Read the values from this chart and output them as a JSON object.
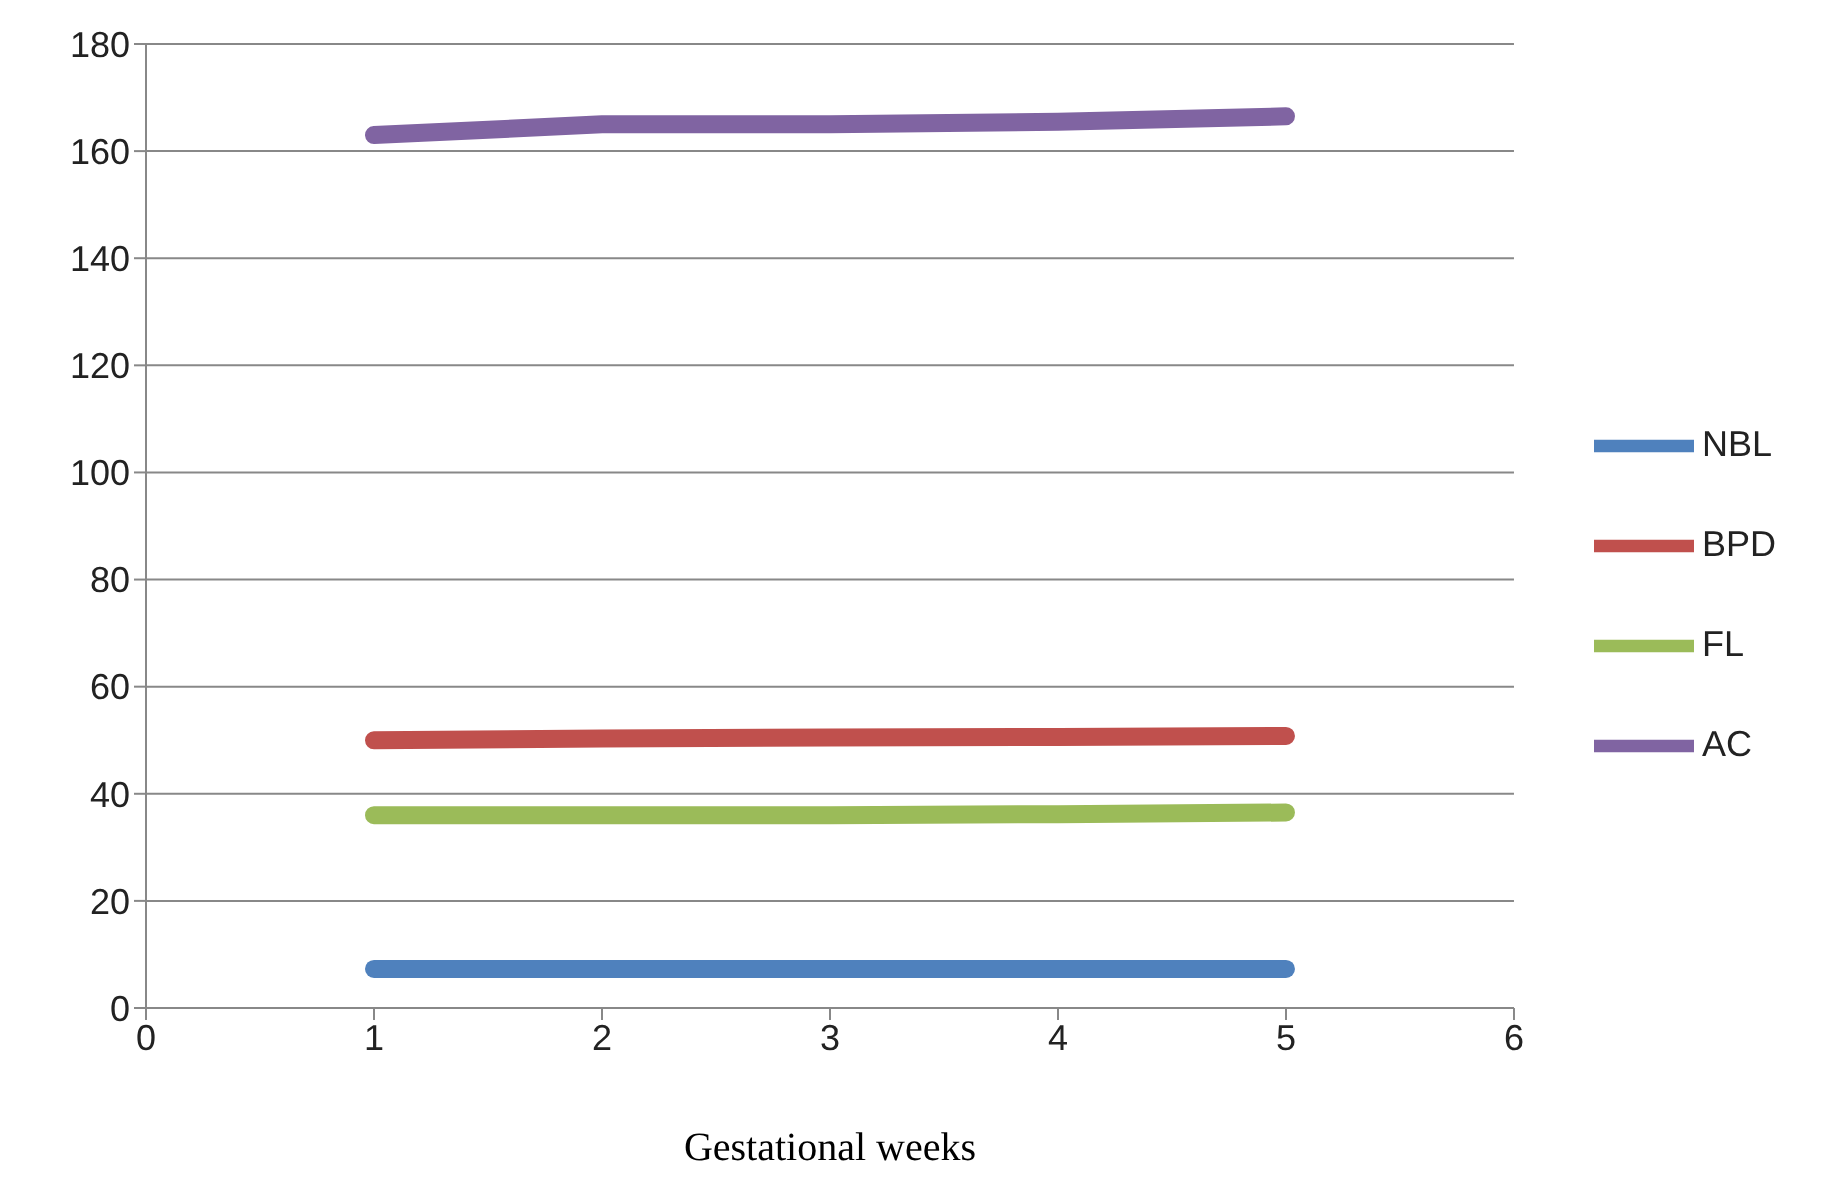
{
  "chart_data": {
    "type": "line",
    "xlabel": "Gestational weeks",
    "x": [
      1,
      2,
      3,
      4,
      5
    ],
    "xlim": [
      0,
      6
    ],
    "xticks": [
      0,
      1,
      2,
      3,
      4,
      5,
      6
    ],
    "ylim": [
      0,
      180
    ],
    "yticks": [
      0,
      20,
      40,
      60,
      80,
      100,
      120,
      140,
      160,
      180
    ],
    "grid": "y",
    "legend": "right",
    "marker": "none",
    "line_style": "solid",
    "series": [
      {
        "name": "NBL",
        "color": "#4f81bd",
        "values": [
          7.3,
          7.3,
          7.3,
          7.3,
          7.3
        ]
      },
      {
        "name": "BPD",
        "color": "#c0504d",
        "values": [
          50,
          50.3,
          50.5,
          50.6,
          50.8
        ]
      },
      {
        "name": "FL",
        "color": "#9bbb59",
        "values": [
          36,
          36,
          36,
          36.2,
          36.5
        ]
      },
      {
        "name": "AC",
        "color": "#8064a2",
        "values": [
          163,
          165,
          165,
          165.5,
          166.5
        ]
      }
    ]
  }
}
